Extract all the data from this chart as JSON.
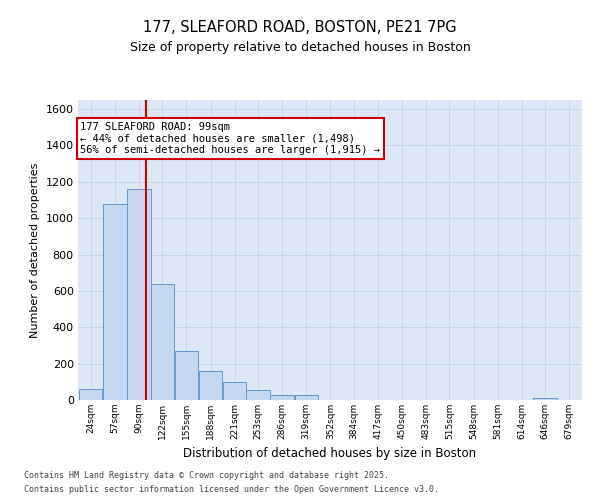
{
  "title_line1": "177, SLEAFORD ROAD, BOSTON, PE21 7PG",
  "title_line2": "Size of property relative to detached houses in Boston",
  "xlabel": "Distribution of detached houses by size in Boston",
  "ylabel": "Number of detached properties",
  "annotation_line1": "177 SLEAFORD ROAD: 99sqm",
  "annotation_line2": "← 44% of detached houses are smaller (1,498)",
  "annotation_line3": "56% of semi-detached houses are larger (1,915) →",
  "red_line_x": 99,
  "bins": [
    24,
    57,
    90,
    122,
    155,
    188,
    221,
    253,
    286,
    319,
    352,
    384,
    417,
    450,
    483,
    515,
    548,
    581,
    614,
    646,
    679
  ],
  "bin_labels": [
    "24sqm",
    "57sqm",
    "90sqm",
    "122sqm",
    "155sqm",
    "188sqm",
    "221sqm",
    "253sqm",
    "286sqm",
    "319sqm",
    "352sqm",
    "384sqm",
    "417sqm",
    "450sqm",
    "483sqm",
    "515sqm",
    "548sqm",
    "581sqm",
    "614sqm",
    "646sqm",
    "679sqm"
  ],
  "counts": [
    60,
    1080,
    1160,
    640,
    270,
    160,
    100,
    55,
    30,
    25,
    0,
    0,
    0,
    0,
    0,
    0,
    0,
    0,
    0,
    10,
    0
  ],
  "bar_color": "#c5d8ef",
  "bar_edge_color": "#6699cc",
  "grid_color": "#c8d4e8",
  "background_color": "#dce6f5",
  "red_line_color": "#cc0000",
  "annotation_box_color": "#cc0000",
  "ylim": [
    0,
    1650
  ],
  "yticks": [
    0,
    200,
    400,
    600,
    800,
    1000,
    1200,
    1400,
    1600
  ],
  "footer_line1": "Contains HM Land Registry data © Crown copyright and database right 2025.",
  "footer_line2": "Contains public sector information licensed under the Open Government Licence v3.0."
}
